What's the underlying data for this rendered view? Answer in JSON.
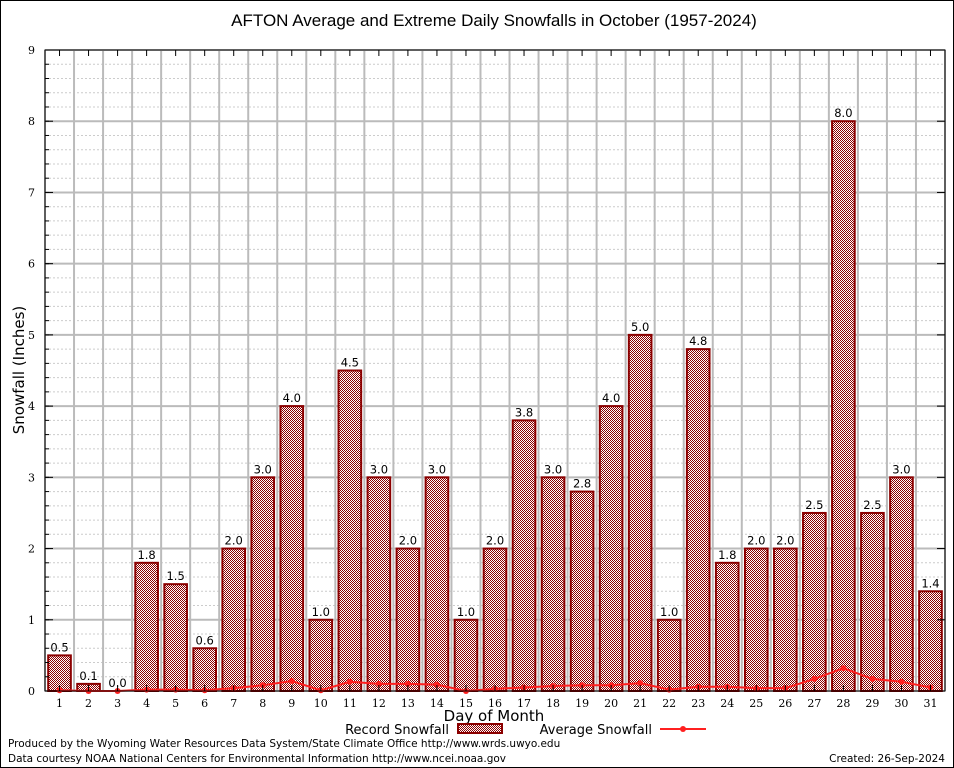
{
  "chart_data": {
    "type": "bar",
    "title": "AFTON Average and Extreme Daily Snowfalls in October (1957-2024)",
    "xlabel": "Day of Month",
    "ylabel": "Snowfall (Inches)",
    "ylim": [
      0,
      9
    ],
    "yticks": [
      "0",
      "1",
      "2",
      "3",
      "4",
      "5",
      "6",
      "7",
      "8",
      "9"
    ],
    "grid": true,
    "categories": [
      "1",
      "2",
      "3",
      "4",
      "5",
      "6",
      "7",
      "8",
      "9",
      "10",
      "11",
      "12",
      "13",
      "14",
      "15",
      "16",
      "17",
      "18",
      "19",
      "20",
      "21",
      "22",
      "23",
      "24",
      "25",
      "26",
      "27",
      "28",
      "29",
      "30",
      "31"
    ],
    "series": [
      {
        "name": "Record Snowfall",
        "type": "bar",
        "color": "#8b0000",
        "values": [
          0.5,
          0.1,
          0.0,
          1.8,
          1.5,
          0.6,
          2.0,
          3.0,
          4.0,
          1.0,
          4.5,
          3.0,
          2.0,
          3.0,
          1.0,
          2.0,
          3.8,
          3.0,
          2.8,
          4.0,
          5.0,
          1.0,
          4.8,
          1.8,
          2.0,
          2.0,
          2.5,
          8.0,
          2.5,
          3.0,
          1.4
        ],
        "labels": [
          "0.5",
          "0.1",
          "0.0",
          "1.8",
          "1.5",
          "0.6",
          "2.0",
          "3.0",
          "4.0",
          "1.0",
          "4.5",
          "3.0",
          "2.0",
          "3.0",
          "1.0",
          "2.0",
          "3.8",
          "3.0",
          "2.8",
          "4.0",
          "5.0",
          "1.0",
          "4.8",
          "1.8",
          "2.0",
          "2.0",
          "2.5",
          "8.0",
          "2.5",
          "3.0",
          "1.4"
        ]
      },
      {
        "name": "Average Snowfall",
        "type": "line",
        "color": "#ff2020",
        "values": [
          0.01,
          0.0,
          0.0,
          0.02,
          0.02,
          0.01,
          0.04,
          0.08,
          0.14,
          0.01,
          0.13,
          0.1,
          0.1,
          0.09,
          0.0,
          0.03,
          0.05,
          0.07,
          0.08,
          0.08,
          0.11,
          0.02,
          0.06,
          0.06,
          0.04,
          0.04,
          0.17,
          0.32,
          0.17,
          0.13,
          0.05
        ]
      }
    ],
    "legend_position": "bottom"
  },
  "footer": {
    "produced_by": "Produced by the Wyoming Water Resources Data System/State Climate Office http://www.wrds.uwyo.edu",
    "data_courtesy": "Data courtesy NOAA National Centers for Environmental Information http://www.ncei.noaa.gov",
    "created": "Created: 26-Sep-2024"
  }
}
